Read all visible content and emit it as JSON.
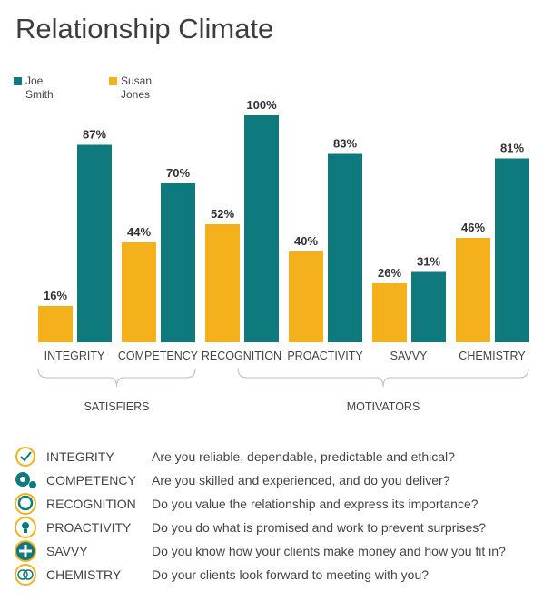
{
  "colors": {
    "joe": "#0f7a7d",
    "susan": "#f5b11b"
  },
  "chart_data": {
    "type": "bar",
    "title": "Relationship Climate",
    "categories": [
      "INTEGRITY",
      "COMPETENCY",
      "RECOGNITION",
      "PROACTIVITY",
      "SAVVY",
      "CHEMISTRY"
    ],
    "series": [
      {
        "name": "Susan Jones",
        "values": [
          16,
          44,
          52,
          40,
          26,
          46
        ]
      },
      {
        "name": "Joe Smith",
        "values": [
          87,
          70,
          100,
          83,
          31,
          81
        ]
      }
    ],
    "ylim": [
      0,
      100
    ],
    "value_suffix": "%",
    "groups": [
      {
        "label": "SATISFIERS",
        "categories": [
          "INTEGRITY",
          "COMPETENCY"
        ]
      },
      {
        "label": "MOTIVATORS",
        "categories": [
          "RECOGNITION",
          "PROACTIVITY",
          "SAVVY",
          "CHEMISTRY"
        ]
      }
    ],
    "legend": {
      "placement": "top-left",
      "entries": [
        "Joe Smith",
        "Susan Jones"
      ]
    }
  },
  "legend": {
    "joe_line1": "Joe",
    "joe_line2": "Smith",
    "susan_line1": "Susan",
    "susan_line2": "Jones"
  },
  "definitions": [
    {
      "icon": "check-circle-icon",
      "name": "INTEGRITY",
      "question": "Are you reliable, dependable, predictable and ethical?"
    },
    {
      "icon": "gears-icon",
      "name": "COMPETENCY",
      "question": "Are you skilled and experienced, and do you deliver?"
    },
    {
      "icon": "award-ring-icon",
      "name": "RECOGNITION",
      "question": "Do you value the relationship and express its importance?"
    },
    {
      "icon": "lightbulb-icon",
      "name": "PROACTIVITY",
      "question": "Do you do what is promised and work to prevent surprises?"
    },
    {
      "icon": "plus-circle-icon",
      "name": "SAVVY",
      "question": "Do you know how your clients make money and how you fit in?"
    },
    {
      "icon": "interlocking-rings-icon",
      "name": "CHEMISTRY",
      "question": "Do your clients look forward to meeting with you?"
    }
  ]
}
